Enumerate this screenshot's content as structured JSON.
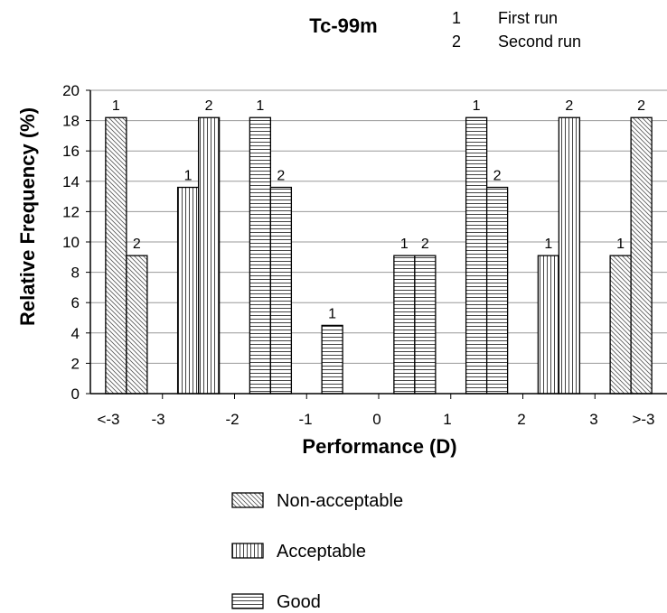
{
  "chart_data": {
    "type": "bar",
    "title": "Tc-99m",
    "xlabel": "Performance (D)",
    "ylabel": "Relative Frequency (%)",
    "ylim": [
      0,
      20
    ],
    "yticks": [
      "0",
      "2",
      "4",
      "6",
      "8",
      "10",
      "12",
      "14",
      "16",
      "18",
      "20"
    ],
    "grid": "horizontal",
    "run_key": [
      {
        "number": "1",
        "label": "First run"
      },
      {
        "number": "2",
        "label": "Second run"
      }
    ],
    "categories": [
      "<-3",
      "-3 to -2",
      "-2 to -1",
      "-1 to 0",
      "0 to 1",
      "1 to 2",
      "2 to 3",
      ">3"
    ],
    "x_tick_labels": [
      "<-3",
      "-3",
      "-2",
      "-1",
      "0",
      "1",
      "2",
      "3",
      ">-3"
    ],
    "series": [
      {
        "name": "First run",
        "label": "1",
        "values": [
          18.2,
          13.6,
          18.2,
          4.5,
          9.1,
          18.2,
          9.1,
          9.1
        ]
      },
      {
        "name": "Second run",
        "label": "2",
        "values": [
          9.1,
          18.2,
          13.6,
          null,
          9.1,
          13.6,
          18.2,
          18.2
        ]
      }
    ],
    "category_class": [
      "non-acceptable",
      "acceptable",
      "good",
      "good",
      "good",
      "good",
      "acceptable",
      "non-acceptable"
    ],
    "legend_placement": "bottom",
    "legend": [
      {
        "key": "non-acceptable",
        "label": "Non-acceptable",
        "pattern": "diagonal"
      },
      {
        "key": "acceptable",
        "label": "Acceptable",
        "pattern": "vertical"
      },
      {
        "key": "good",
        "label": "Good",
        "pattern": "horizontal"
      }
    ]
  }
}
